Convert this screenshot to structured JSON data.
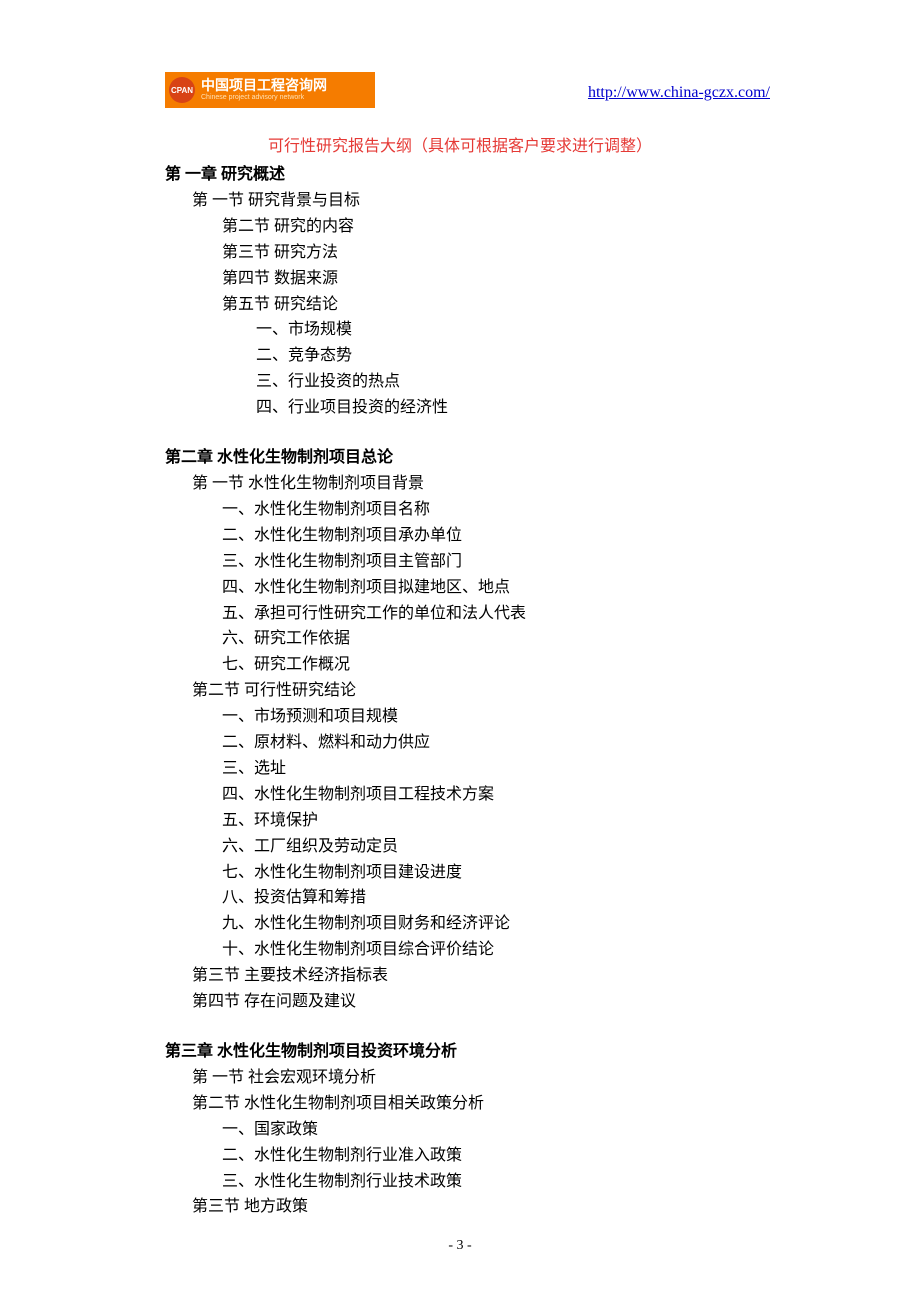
{
  "header": {
    "logo_abbrev": "CPAN",
    "logo_cn": "中国项目工程咨询网",
    "logo_en": "Chinese project advisory network",
    "url": "http://www.china-gczx.com/",
    "logo_bg_color": "#f57c00",
    "logo_circle_color": "#d84315",
    "logo_text_color": "#ffffff"
  },
  "title": "可行性研究报告大纲（具体可根据客户要求进行调整）",
  "title_color": "#e53935",
  "chapter1": {
    "heading": "第 一章   研究概述",
    "sec1": "第 一节  研究背景与目标",
    "sec2": "第二节  研究的内容",
    "sec3": "第三节  研究方法",
    "sec4": "第四节  数据来源",
    "sec5": "第五节  研究结论",
    "items": {
      "i1": "一、市场规模",
      "i2": "二、竞争态势",
      "i3": "三、行业投资的热点",
      "i4": "四、行业项目投资的经济性"
    }
  },
  "chapter2": {
    "heading": "第二章  水性化生物制剂项目总论",
    "sec1": "第 一节  水性化生物制剂项目背景",
    "sec1_items": {
      "i1": "一、水性化生物制剂项目名称",
      "i2": "二、水性化生物制剂项目承办单位",
      "i3": "三、水性化生物制剂项目主管部门",
      "i4": "四、水性化生物制剂项目拟建地区、地点",
      "i5": "五、承担可行性研究工作的单位和法人代表",
      "i6": "六、研究工作依据",
      "i7": "七、研究工作概况"
    },
    "sec2": "第二节    可行性研究结论",
    "sec2_items": {
      "i1": "一、市场预测和项目规模",
      "i2": "二、原材料、燃料和动力供应",
      "i3": "三、选址",
      "i4": "四、水性化生物制剂项目工程技术方案",
      "i5": "五、环境保护",
      "i6": "六、工厂组织及劳动定员",
      "i7": "七、水性化生物制剂项目建设进度",
      "i8": "八、投资估算和筹措",
      "i9": "九、水性化生物制剂项目财务和经济评论",
      "i10": "十、水性化生物制剂项目综合评价结论"
    },
    "sec3": "第三节    主要技术经济指标表",
    "sec4": "第四节    存在问题及建议"
  },
  "chapter3": {
    "heading": "第三章  水性化生物制剂项目投资环境分析",
    "sec1": "第 一节    社会宏观环境分析",
    "sec2": "第二节  水性化生物制剂项目相关政策分析",
    "sec2_items": {
      "i1": "一、国家政策",
      "i2": "二、水性化生物制剂行业准入政策",
      "i3": "三、水性化生物制剂行业技术政策"
    },
    "sec3": "第三节    地方政策"
  },
  "footer": {
    "page_num": "- 3 -"
  },
  "style": {
    "body_fontsize": 16,
    "body_color": "#000000",
    "background_color": "#ffffff",
    "url_color": "#0000cc",
    "line_height": 1.62
  }
}
